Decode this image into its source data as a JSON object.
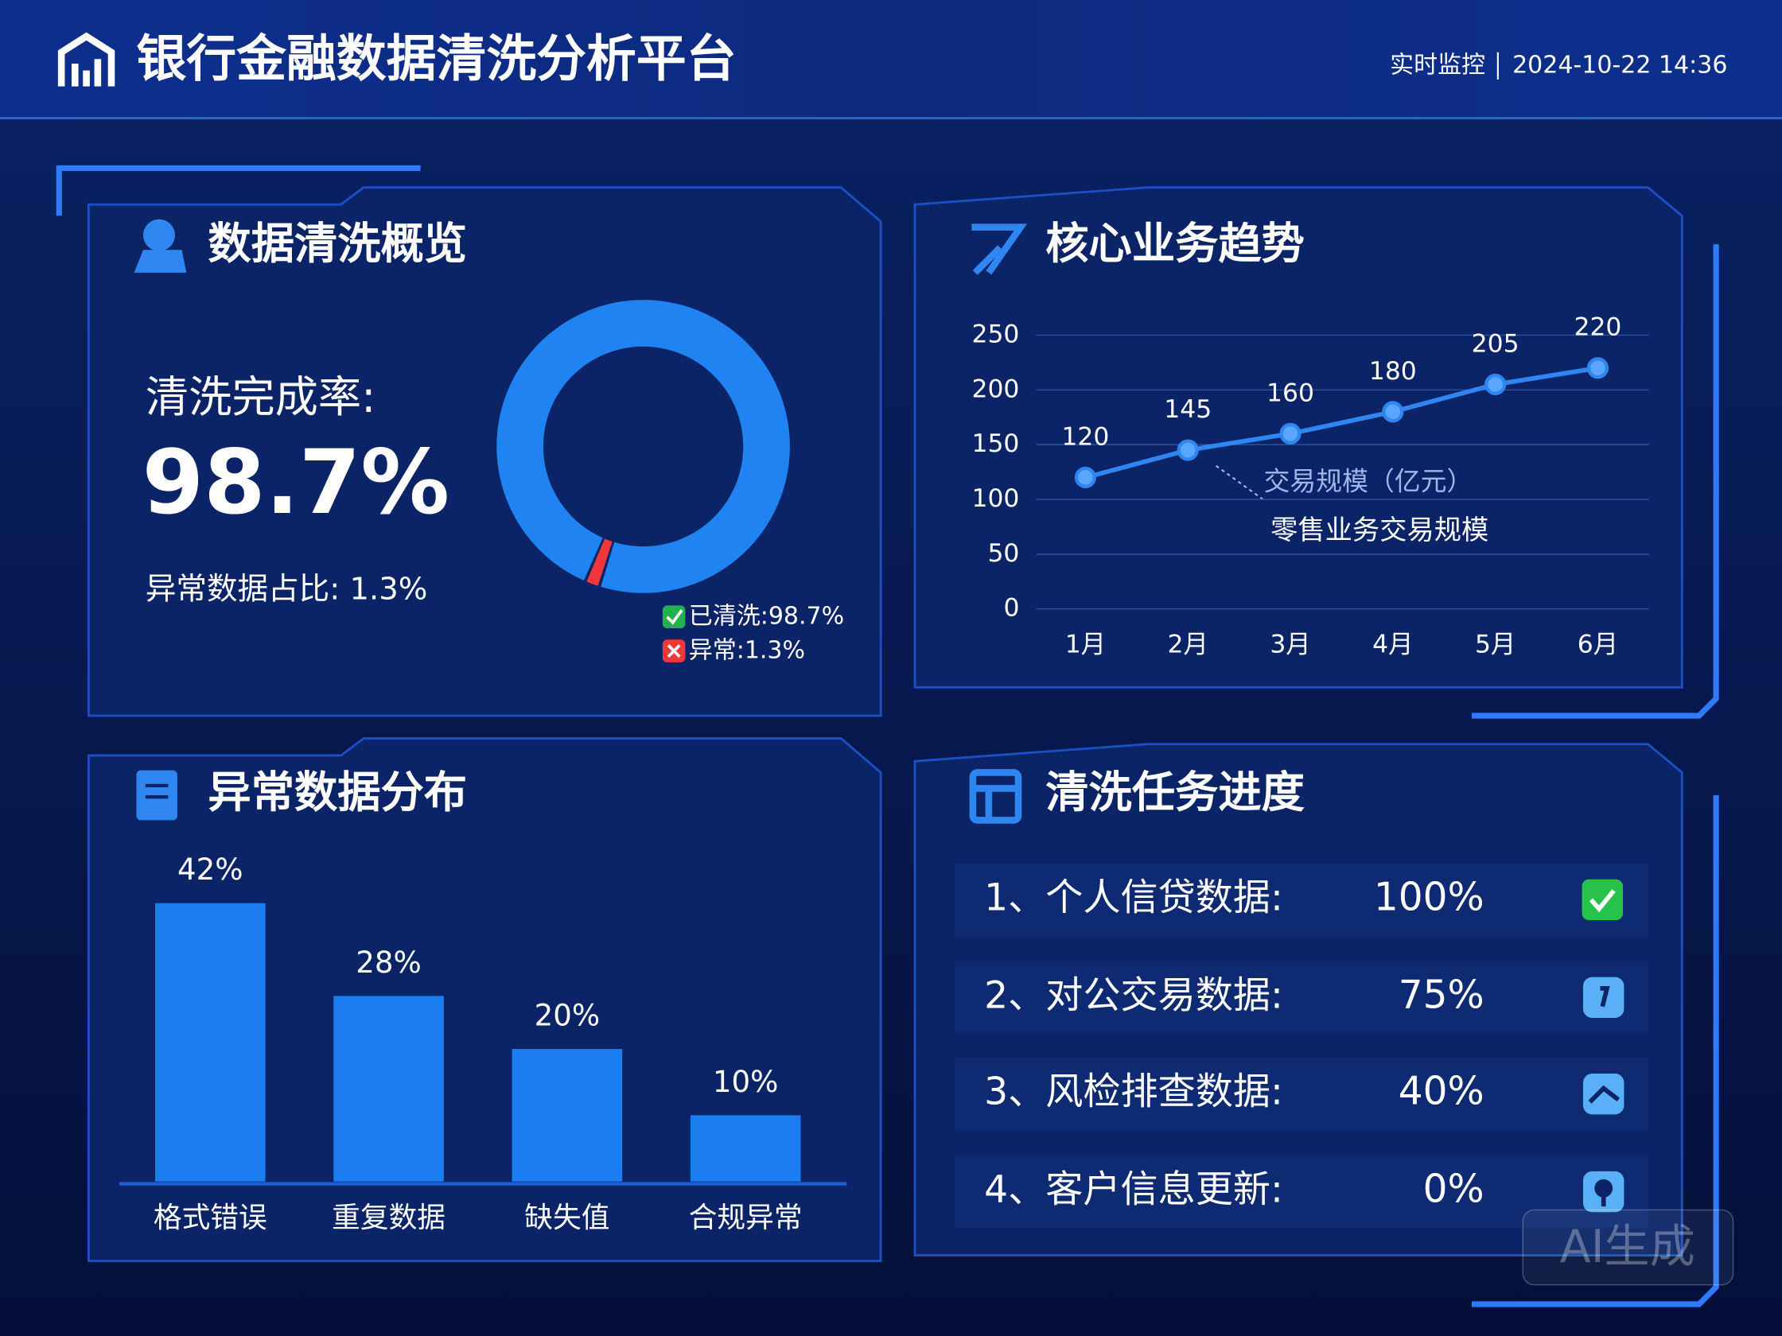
{
  "header": {
    "title": "银行金融数据清洗分析平台",
    "status": "实时监控",
    "datetime": "2024-10-22 14:36"
  },
  "overview": {
    "rate_label": "清洗完成率:",
    "rate_value": "98.7%",
    "abnormal_text": "异常数据占比: 1.3%"
  },
  "chart_data": [
    {
      "type": "donut",
      "title": "数据清洗概览",
      "categories": [
        "已清洗:",
        "异常:"
      ],
      "values": [
        98.7,
        1.3
      ],
      "value_labels": [
        "98.7%",
        "1.3%"
      ],
      "colors": [
        "#1f84f2",
        "#f0383c"
      ]
    },
    {
      "type": "line",
      "title": "核心业务趋势",
      "categories": [
        "1月",
        "2月",
        "3月",
        "4月",
        "5月",
        "6月"
      ],
      "series": [
        {
          "name": "零售业务交易规模",
          "color": "#2f86f0",
          "values": [
            120,
            145,
            160,
            180,
            205,
            220
          ]
        }
      ],
      "annotation": "交易规模（亿元）",
      "ylim": [
        0,
        250
      ],
      "yticks": [
        0,
        50,
        100,
        150,
        200,
        250
      ],
      "grid": true
    },
    {
      "type": "bar",
      "title": "异常数据分布",
      "categories": [
        "格式错误",
        "重复数据",
        "缺失值",
        "合规异常"
      ],
      "values": [
        42,
        28,
        20,
        10
      ],
      "value_labels": [
        "42%",
        "28%",
        "20%",
        "10%"
      ],
      "color": "#1a7ef0"
    }
  ],
  "tasks": {
    "title": "清洗任务进度",
    "items": [
      {
        "name": "1、个人信贷数据:",
        "progress": "100%"
      },
      {
        "name": "2、对公交易数据:",
        "progress": "75%"
      },
      {
        "name": "3、风检排查数据:",
        "progress": "40%"
      },
      {
        "name": "4、客户信息更新:",
        "progress": "0%"
      }
    ]
  },
  "watermark": "AI生成"
}
